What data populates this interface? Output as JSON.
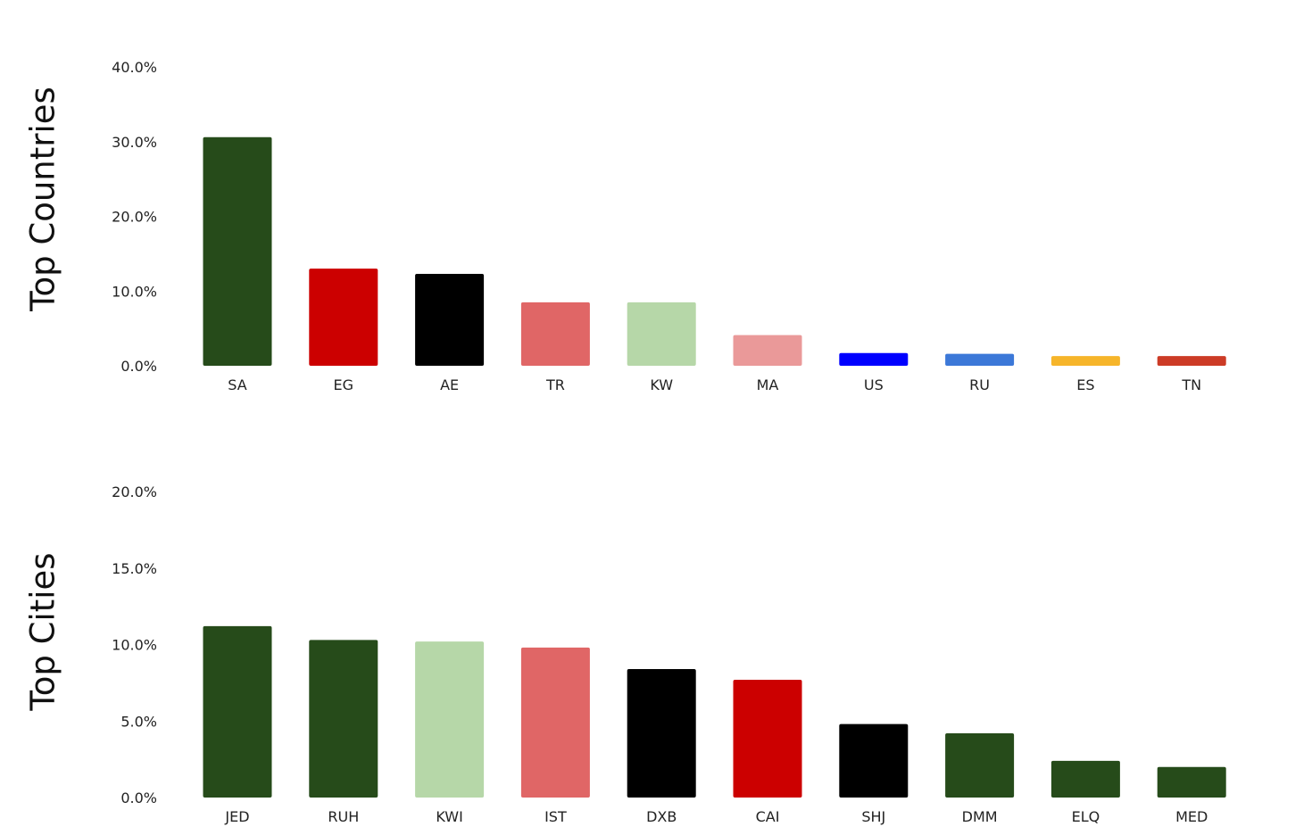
{
  "chart_data": [
    {
      "type": "bar",
      "ylabel": "Top Countries",
      "categories": [
        "SA",
        "EG",
        "AE",
        "TR",
        "KW",
        "MA",
        "US",
        "RU",
        "ES",
        "TN"
      ],
      "values": [
        30.6,
        13.0,
        12.3,
        8.5,
        8.5,
        4.1,
        1.7,
        1.6,
        1.3,
        1.3
      ],
      "colors": [
        "#264b1a",
        "#cc0000",
        "#000000",
        "#e06666",
        "#b6d7a8",
        "#ea9999",
        "#0000ff",
        "#3c78d8",
        "#f6b52a",
        "#cc3b26"
      ],
      "yticks": [
        "0.0%",
        "10.0%",
        "20.0%",
        "30.0%",
        "40.0%"
      ],
      "ylim": [
        0,
        40
      ],
      "grid": false
    },
    {
      "type": "bar",
      "ylabel": "Top Cities",
      "categories": [
        "JED",
        "RUH",
        "KWI",
        "IST",
        "DXB",
        "CAI",
        "SHJ",
        "DMM",
        "ELQ",
        "MED"
      ],
      "values": [
        11.2,
        10.3,
        10.2,
        9.8,
        8.4,
        7.7,
        4.8,
        4.2,
        2.4,
        2.0
      ],
      "colors": [
        "#264b1a",
        "#264b1a",
        "#b6d7a8",
        "#e06666",
        "#000000",
        "#cc0000",
        "#000000",
        "#264b1a",
        "#264b1a",
        "#264b1a"
      ],
      "yticks": [
        "0.0%",
        "5.0%",
        "10.0%",
        "15.0%",
        "20.0%"
      ],
      "ylim": [
        0,
        20
      ],
      "grid": false
    }
  ]
}
